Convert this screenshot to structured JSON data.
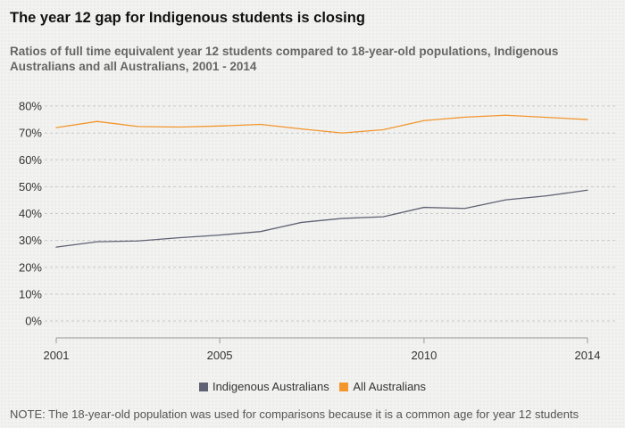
{
  "colors": {
    "indigenous": "#5f6273",
    "all": "#f2962d",
    "grid": "#c8c8c8",
    "axis": "#999999"
  },
  "chart_data": {
    "type": "line",
    "title": "The year 12 gap for Indigenous students is closing",
    "subtitle": "Ratios of full time equivalent year 12 students compared to 18-year-old populations, Indigenous Australians and all Australians, 2001 - 2014",
    "x": [
      2001,
      2002,
      2003,
      2004,
      2005,
      2006,
      2007,
      2008,
      2009,
      2010,
      2011,
      2012,
      2013,
      2014
    ],
    "series": [
      {
        "name": "Indigenous Australians",
        "color_key": "indigenous",
        "values": [
          27.5,
          29.5,
          29.8,
          31.0,
          32.0,
          33.3,
          36.7,
          38.2,
          38.8,
          42.3,
          41.9,
          45.1,
          46.6,
          48.7
        ]
      },
      {
        "name": "All Australians",
        "color_key": "all",
        "values": [
          72.0,
          74.3,
          72.4,
          72.2,
          72.6,
          73.2,
          71.5,
          70.0,
          71.2,
          74.6,
          75.9,
          76.6,
          75.8,
          75.0
        ]
      }
    ],
    "yticks": [
      "0%",
      "10%",
      "20%",
      "30%",
      "40%",
      "50%",
      "60%",
      "70%",
      "80%"
    ],
    "xticks": [
      "2001",
      "2005",
      "2010",
      "2014"
    ],
    "ylim": [
      0,
      80
    ],
    "xlim": [
      2001,
      2014
    ],
    "grid": true,
    "legend_position": "bottom"
  },
  "note": "NOTE: The 18-year-old population was used for comparisons because it is a common age for year 12 students"
}
